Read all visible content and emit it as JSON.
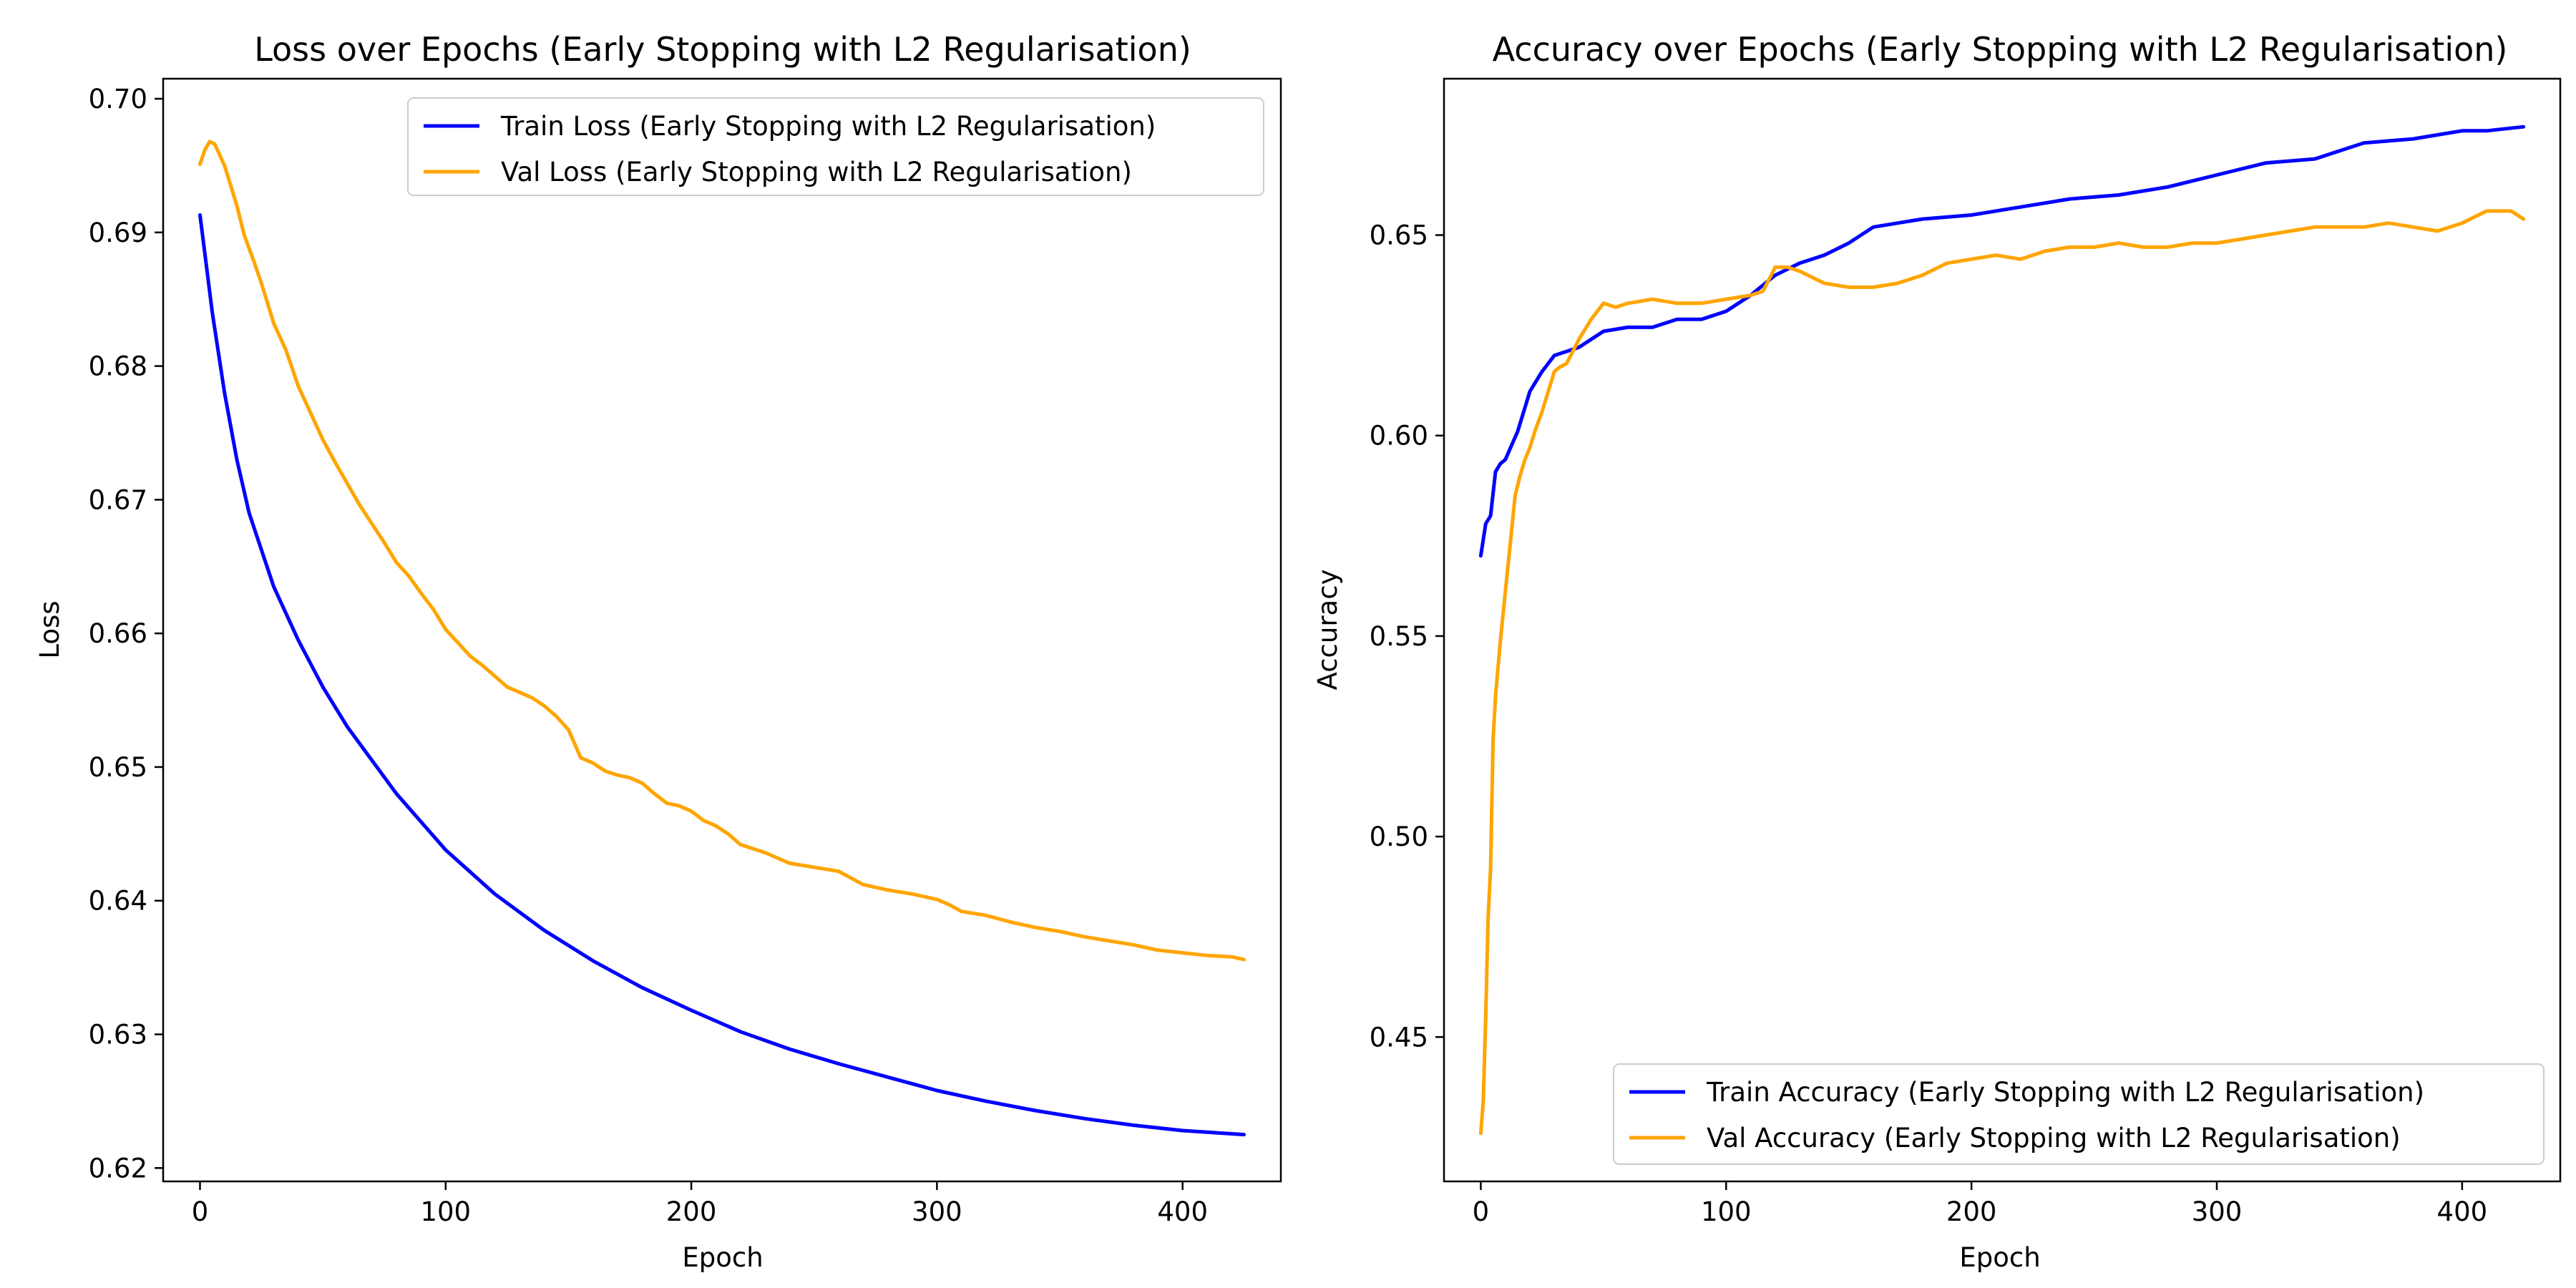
{
  "chart_data": [
    {
      "type": "line",
      "title": "Loss over Epochs (Early Stopping with L2 Regularisation)",
      "xlabel": "Epoch",
      "ylabel": "Loss",
      "xlim": [
        -15,
        440
      ],
      "ylim": [
        0.619,
        0.7015
      ],
      "xticks": [
        0,
        100,
        200,
        300,
        400
      ],
      "xtick_labels": [
        "0",
        "100",
        "200",
        "300",
        "400"
      ],
      "yticks": [
        0.62,
        0.63,
        0.64,
        0.65,
        0.66,
        0.67,
        0.68,
        0.69,
        0.7
      ],
      "ytick_labels": [
        "0.62",
        "0.63",
        "0.64",
        "0.65",
        "0.66",
        "0.67",
        "0.68",
        "0.69",
        "0.70"
      ],
      "grid": false,
      "legend_position": "top-right",
      "series": [
        {
          "name": "Train Loss (Early Stopping with L2 Regularisation)",
          "color": "#0000ff",
          "x": [
            0,
            5,
            10,
            15,
            20,
            30,
            40,
            50,
            60,
            80,
            100,
            120,
            140,
            160,
            180,
            200,
            220,
            240,
            260,
            280,
            300,
            320,
            340,
            360,
            380,
            400,
            425
          ],
          "y": [
            0.6913,
            0.684,
            0.678,
            0.673,
            0.669,
            0.6635,
            0.6595,
            0.656,
            0.653,
            0.648,
            0.6438,
            0.6405,
            0.6378,
            0.6355,
            0.6335,
            0.6318,
            0.6302,
            0.6289,
            0.6278,
            0.6268,
            0.6258,
            0.625,
            0.6243,
            0.6237,
            0.6232,
            0.6228,
            0.6225
          ]
        },
        {
          "name": "Val Loss (Early Stopping with L2 Regularisation)",
          "color": "#ffa500",
          "x": [
            0,
            2,
            4,
            6,
            8,
            10,
            12,
            15,
            18,
            22,
            25,
            30,
            35,
            40,
            45,
            50,
            55,
            60,
            65,
            70,
            75,
            80,
            85,
            90,
            95,
            100,
            105,
            110,
            115,
            120,
            125,
            130,
            135,
            140,
            145,
            150,
            155,
            160,
            165,
            170,
            175,
            180,
            185,
            190,
            195,
            200,
            205,
            210,
            215,
            220,
            230,
            240,
            250,
            260,
            270,
            280,
            290,
            300,
            305,
            310,
            320,
            330,
            340,
            350,
            360,
            370,
            380,
            390,
            400,
            410,
            420,
            425
          ],
          "y": [
            0.6951,
            0.6962,
            0.6968,
            0.6966,
            0.6958,
            0.695,
            0.6938,
            0.692,
            0.6898,
            0.6878,
            0.6862,
            0.6832,
            0.6812,
            0.6785,
            0.6765,
            0.6745,
            0.6728,
            0.6712,
            0.6696,
            0.6682,
            0.6668,
            0.6653,
            0.6643,
            0.663,
            0.6618,
            0.6603,
            0.6593,
            0.6583,
            0.6576,
            0.6568,
            0.656,
            0.6556,
            0.6552,
            0.6546,
            0.6538,
            0.6528,
            0.6507,
            0.6503,
            0.6497,
            0.6494,
            0.6492,
            0.6488,
            0.648,
            0.6473,
            0.6471,
            0.6467,
            0.646,
            0.6456,
            0.645,
            0.6442,
            0.6436,
            0.6428,
            0.6425,
            0.6422,
            0.6412,
            0.6408,
            0.6405,
            0.6401,
            0.6397,
            0.6392,
            0.6389,
            0.6384,
            0.638,
            0.6377,
            0.6373,
            0.637,
            0.6367,
            0.6363,
            0.6361,
            0.6359,
            0.6358,
            0.6356
          ]
        }
      ]
    },
    {
      "type": "line",
      "title": "Accuracy over Epochs (Early Stopping with L2 Regularisation)",
      "xlabel": "Epoch",
      "ylabel": "Accuracy",
      "xlim": [
        -15,
        440
      ],
      "ylim": [
        0.414,
        0.689
      ],
      "xticks": [
        0,
        100,
        200,
        300,
        400
      ],
      "xtick_labels": [
        "0",
        "100",
        "200",
        "300",
        "400"
      ],
      "yticks": [
        0.45,
        0.5,
        0.55,
        0.6,
        0.65
      ],
      "ytick_labels": [
        "0.45",
        "0.50",
        "0.55",
        "0.60",
        "0.65"
      ],
      "grid": false,
      "legend_position": "bottom-right",
      "series": [
        {
          "name": "Train Accuracy (Early Stopping with L2 Regularisation)",
          "color": "#0000ff",
          "x": [
            0,
            2,
            4,
            6,
            8,
            10,
            15,
            20,
            25,
            30,
            40,
            50,
            60,
            70,
            80,
            90,
            100,
            110,
            120,
            130,
            140,
            150,
            160,
            170,
            180,
            200,
            220,
            240,
            260,
            280,
            300,
            320,
            340,
            350,
            360,
            380,
            400,
            410,
            425
          ],
          "y": [
            0.57,
            0.578,
            0.58,
            0.591,
            0.593,
            0.594,
            0.601,
            0.611,
            0.616,
            0.62,
            0.622,
            0.626,
            0.627,
            0.627,
            0.629,
            0.629,
            0.631,
            0.635,
            0.64,
            0.643,
            0.645,
            0.648,
            0.652,
            0.653,
            0.654,
            0.655,
            0.657,
            0.659,
            0.66,
            0.662,
            0.665,
            0.668,
            0.669,
            0.671,
            0.673,
            0.674,
            0.676,
            0.676,
            0.677
          ]
        },
        {
          "name": "Val Accuracy (Early Stopping with L2 Regularisation)",
          "color": "#ffa500",
          "x": [
            0,
            1,
            2,
            3,
            4,
            5,
            6,
            8,
            10,
            12,
            14,
            16,
            18,
            20,
            22,
            25,
            28,
            30,
            32,
            35,
            40,
            45,
            50,
            55,
            60,
            70,
            80,
            90,
            100,
            110,
            115,
            120,
            125,
            130,
            140,
            150,
            160,
            170,
            180,
            190,
            200,
            210,
            220,
            230,
            240,
            250,
            260,
            270,
            280,
            290,
            300,
            310,
            320,
            330,
            340,
            350,
            360,
            370,
            380,
            390,
            400,
            410,
            420,
            425
          ],
          "y": [
            0.426,
            0.434,
            0.455,
            0.48,
            0.492,
            0.524,
            0.535,
            0.549,
            0.561,
            0.573,
            0.585,
            0.59,
            0.594,
            0.597,
            0.601,
            0.606,
            0.612,
            0.616,
            0.617,
            0.618,
            0.624,
            0.629,
            0.633,
            0.632,
            0.633,
            0.634,
            0.633,
            0.633,
            0.634,
            0.635,
            0.636,
            0.642,
            0.642,
            0.641,
            0.638,
            0.637,
            0.637,
            0.638,
            0.64,
            0.643,
            0.644,
            0.645,
            0.644,
            0.646,
            0.647,
            0.647,
            0.648,
            0.647,
            0.647,
            0.648,
            0.648,
            0.649,
            0.65,
            0.651,
            0.652,
            0.652,
            0.652,
            0.653,
            0.652,
            0.651,
            0.653,
            0.656,
            0.656,
            0.654
          ]
        }
      ]
    }
  ]
}
